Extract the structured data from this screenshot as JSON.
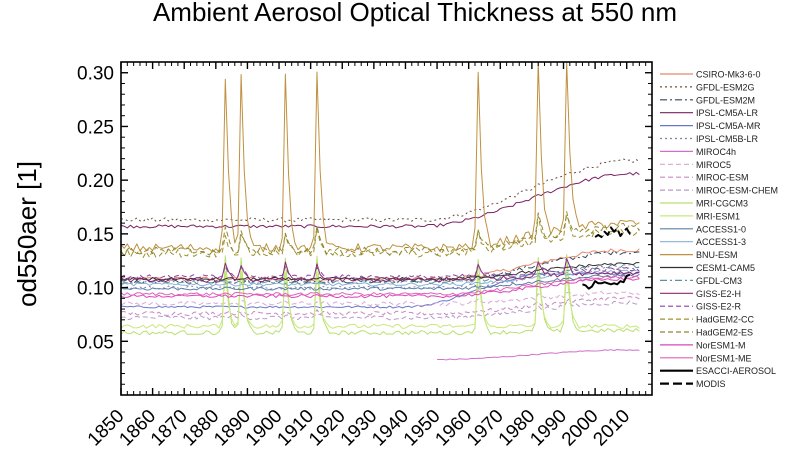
{
  "chart_data": {
    "type": "line",
    "title": "Ambient Aerosol Optical Thickness at 550 nm",
    "xlabel": "",
    "ylabel": "od550aer [1]",
    "xlim": [
      1850,
      2018
    ],
    "ylim": [
      0.0,
      0.31
    ],
    "xticks": [
      1850,
      1860,
      1870,
      1880,
      1890,
      1900,
      1910,
      1920,
      1930,
      1940,
      1950,
      1960,
      1970,
      1980,
      1990,
      2000,
      2010
    ],
    "yticks": [
      0.05,
      0.1,
      0.15,
      0.2,
      0.25,
      0.3
    ],
    "ytick_labels": [
      "0.05",
      "0.10",
      "0.15",
      "0.20",
      "0.25",
      "0.30"
    ],
    "volcano_years": [
      1883,
      1888,
      1902,
      1912,
      1963,
      1982,
      1991
    ],
    "series": [
      {
        "name": "CSIRO-Mk3-6-0",
        "color": "#e8896a",
        "dash": "solid",
        "start": 1850,
        "end": 2014,
        "kind": "ramp",
        "base": 0.108,
        "end_value": 0.135,
        "ramp_start": 1950,
        "ramp_end": 2010,
        "noise": 0.002,
        "volc": 0
      },
      {
        "name": "GFDL-ESM2G",
        "color": "#6a5040",
        "dash": "dotted",
        "start": 1850,
        "end": 2014,
        "kind": "ramp",
        "base": 0.163,
        "end_value": 0.218,
        "ramp_start": 1945,
        "ramp_end": 2012,
        "noise": 0.002,
        "volc": 0
      },
      {
        "name": "GFDL-ESM2M",
        "color": "#2c4a60",
        "dash": "dashdot",
        "start": 1850,
        "end": 2014,
        "kind": "ramp",
        "base": 0.106,
        "end_value": 0.133,
        "ramp_start": 1950,
        "ramp_end": 2010,
        "noise": 0.002,
        "volc": 0
      },
      {
        "name": "IPSL-CM5A-LR",
        "color": "#7a2060",
        "dash": "solid",
        "start": 1850,
        "end": 2014,
        "kind": "ramp",
        "base": 0.157,
        "end_value": 0.206,
        "ramp_start": 1945,
        "ramp_end": 2012,
        "noise": 0.0015,
        "volc": 0
      },
      {
        "name": "IPSL-CM5A-MR",
        "color": "#6878c8",
        "dash": "solid",
        "start": 1850,
        "end": 2014,
        "kind": "ramp",
        "base": 0.082,
        "end_value": 0.113,
        "ramp_start": 1940,
        "ramp_end": 1985,
        "noise": 0.001,
        "volc": 0
      },
      {
        "name": "IPSL-CM5B-LR",
        "color": "#8a7aa8",
        "dash": "dotted",
        "start": 1850,
        "end": 2014,
        "kind": "ramp",
        "base": 0.1,
        "end_value": 0.118,
        "ramp_start": 1950,
        "ramp_end": 2010,
        "noise": 0.0015,
        "volc": 0
      },
      {
        "name": "MIROC4h",
        "color": "#d070c8",
        "dash": "solid",
        "start": 1950,
        "end": 2014,
        "kind": "ramp",
        "base": 0.033,
        "end_value": 0.042,
        "ramp_start": 1950,
        "ramp_end": 2010,
        "noise": 0.0005,
        "volc": 0
      },
      {
        "name": "MIROC5",
        "color": "#d8a8d8",
        "dash": "dashed",
        "start": 1850,
        "end": 2014,
        "kind": "ramp",
        "base": 0.085,
        "end_value": 0.095,
        "ramp_start": 1950,
        "ramp_end": 2010,
        "noise": 0.002,
        "volc": 0.002
      },
      {
        "name": "MIROC-ESM",
        "color": "#c888c0",
        "dash": "dashed",
        "start": 1850,
        "end": 2014,
        "kind": "ramp",
        "base": 0.076,
        "end_value": 0.09,
        "ramp_start": 1950,
        "ramp_end": 2010,
        "noise": 0.002,
        "volc": 0.002
      },
      {
        "name": "MIROC-ESM-CHEM",
        "color": "#b898c8",
        "dash": "dashed",
        "start": 1850,
        "end": 2014,
        "kind": "ramp",
        "base": 0.072,
        "end_value": 0.086,
        "ramp_start": 1950,
        "ramp_end": 2010,
        "noise": 0.002,
        "volc": 0.002
      },
      {
        "name": "MRI-CGCM3",
        "color": "#b8e070",
        "dash": "solid",
        "start": 1850,
        "end": 2014,
        "kind": "ramp",
        "base": 0.058,
        "end_value": 0.06,
        "ramp_start": 1950,
        "ramp_end": 2010,
        "noise": 0.002,
        "volc": 0.07
      },
      {
        "name": "MRI-ESM1",
        "color": "#c8e878",
        "dash": "solid",
        "start": 1850,
        "end": 2014,
        "kind": "ramp",
        "base": 0.064,
        "end_value": 0.064,
        "ramp_start": 1950,
        "ramp_end": 2010,
        "noise": 0.002,
        "volc": 0.05
      },
      {
        "name": "ACCESS1-0",
        "color": "#5880a8",
        "dash": "solid",
        "start": 1850,
        "end": 2014,
        "kind": "ramp",
        "base": 0.099,
        "end_value": 0.111,
        "ramp_start": 1950,
        "ramp_end": 2010,
        "noise": 0.0015,
        "volc": 0
      },
      {
        "name": "ACCESS1-3",
        "color": "#88b0d8",
        "dash": "solid",
        "start": 1850,
        "end": 2014,
        "kind": "ramp",
        "base": 0.103,
        "end_value": 0.115,
        "ramp_start": 1950,
        "ramp_end": 2010,
        "noise": 0.0015,
        "volc": 0
      },
      {
        "name": "BNU-ESM",
        "color": "#c09040",
        "dash": "solid",
        "start": 1850,
        "end": 2014,
        "kind": "ramp",
        "base": 0.137,
        "end_value": 0.16,
        "ramp_start": 1950,
        "ramp_end": 2010,
        "noise": 0.004,
        "volc": 0.16
      },
      {
        "name": "CESM1-CAM5",
        "color": "#303030",
        "dash": "solid",
        "start": 1850,
        "end": 2014,
        "kind": "ramp",
        "base": 0.108,
        "end_value": 0.122,
        "ramp_start": 1950,
        "ramp_end": 2010,
        "noise": 0.0015,
        "volc": 0
      },
      {
        "name": "GFDL-CM3",
        "color": "#6090a0",
        "dash": "dashdot",
        "start": 1850,
        "end": 2014,
        "kind": "ramp",
        "base": 0.105,
        "end_value": 0.12,
        "ramp_start": 1950,
        "ramp_end": 2010,
        "noise": 0.0015,
        "volc": 0
      },
      {
        "name": "GISS-E2-H",
        "color": "#8a2870",
        "dash": "solid",
        "start": 1850,
        "end": 2014,
        "kind": "ramp",
        "base": 0.107,
        "end_value": 0.114,
        "ramp_start": 1950,
        "ramp_end": 2010,
        "noise": 0.002,
        "volc": 0.015
      },
      {
        "name": "GISS-E2-R",
        "color": "#9040a0",
        "dash": "dashed",
        "start": 1850,
        "end": 2014,
        "kind": "ramp",
        "base": 0.11,
        "end_value": 0.117,
        "ramp_start": 1950,
        "ramp_end": 2010,
        "noise": 0.002,
        "volc": 0.01
      },
      {
        "name": "HadGEM2-CC",
        "color": "#a09028",
        "dash": "dashed",
        "start": 1850,
        "end": 2014,
        "kind": "ramp",
        "base": 0.132,
        "end_value": 0.152,
        "ramp_start": 1950,
        "ramp_end": 2010,
        "noise": 0.004,
        "volc": 0.02
      },
      {
        "name": "HadGEM2-ES",
        "color": "#8a8a30",
        "dash": "dashed",
        "start": 1850,
        "end": 2014,
        "kind": "ramp",
        "base": 0.134,
        "end_value": 0.156,
        "ramp_start": 1950,
        "ramp_end": 2010,
        "noise": 0.004,
        "volc": 0.02
      },
      {
        "name": "NorESM1-M",
        "color": "#d848b8",
        "dash": "solid",
        "start": 1850,
        "end": 2014,
        "kind": "ramp",
        "base": 0.092,
        "end_value": 0.108,
        "ramp_start": 1950,
        "ramp_end": 2010,
        "noise": 0.0015,
        "volc": 0
      },
      {
        "name": "NorESM1-ME",
        "color": "#e060b8",
        "dash": "solid",
        "start": 1850,
        "end": 2014,
        "kind": "ramp",
        "base": 0.094,
        "end_value": 0.11,
        "ramp_start": 1950,
        "ramp_end": 2010,
        "noise": 0.0015,
        "volc": 0
      },
      {
        "name": "ESACCI-AEROSOL",
        "color": "#000000",
        "dash": "solid",
        "width": 2,
        "x": [
          1996,
          1997,
          1998,
          1999,
          2000,
          2001,
          2002,
          2003,
          2004,
          2005,
          2006,
          2007,
          2008,
          2009,
          2010,
          2011
        ],
        "values": [
          0.103,
          0.102,
          0.099,
          0.101,
          0.106,
          0.104,
          0.104,
          0.105,
          0.104,
          0.103,
          0.104,
          0.103,
          0.106,
          0.105,
          0.111,
          0.112
        ]
      },
      {
        "name": "MODIS",
        "color": "#000000",
        "dash": "longdash",
        "width": 2,
        "x": [
          2000,
          2001,
          2002,
          2003,
          2004,
          2005,
          2006,
          2007,
          2008,
          2009,
          2010,
          2011,
          2012
        ],
        "values": [
          0.147,
          0.149,
          0.147,
          0.152,
          0.149,
          0.156,
          0.152,
          0.155,
          0.148,
          0.152,
          0.155,
          0.15,
          0.15
        ]
      }
    ]
  }
}
